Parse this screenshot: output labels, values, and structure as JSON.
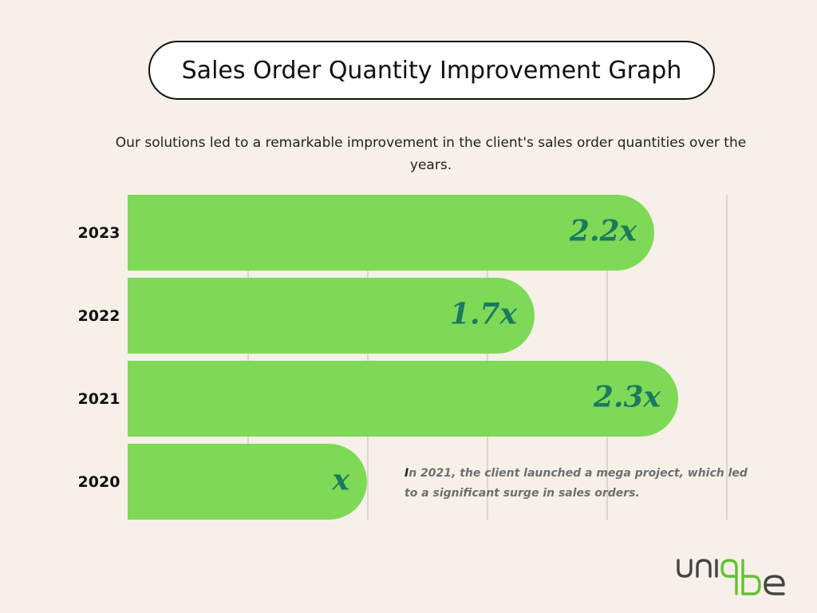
{
  "title": "Sales Order Quantity Improvement Graph",
  "subtitle": "Our solutions led to a remarkable improvement in the client's sales order quantities over the years.",
  "annotation": {
    "lead": "I",
    "rest": "n 2021, the client launched a mega project, which led to a significant surge in sales orders."
  },
  "logo": {
    "text": "uniqbe"
  },
  "colors": {
    "background": "#f6f0e9",
    "bar": "#7ed957",
    "bar_label": "#1a7a5e",
    "grid": "#ddd6cf",
    "logo_dark": "#444444",
    "logo_green": "#63c132"
  },
  "chart_data": {
    "type": "bar",
    "orientation": "horizontal",
    "categories": [
      "2023",
      "2022",
      "2021",
      "2020"
    ],
    "values": [
      2.2,
      1.7,
      2.3,
      1.0
    ],
    "data_labels": [
      "2.2x",
      "1.7x",
      "2.3x",
      "x"
    ],
    "xlim": [
      0,
      2.5
    ],
    "grid": true,
    "xlabel": "",
    "ylabel": ""
  }
}
